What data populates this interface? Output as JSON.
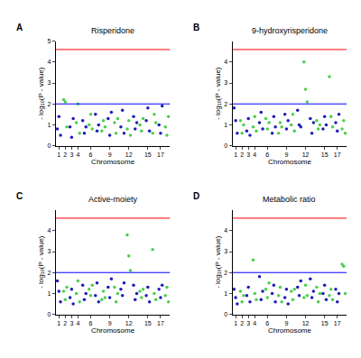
{
  "chart_data": [
    {
      "type": "scatter",
      "panel": "A",
      "title": "Risperidone",
      "x_label": "Chromosome",
      "y_label": "- log₁₀(P - value)",
      "marker": "circle",
      "xlim": [
        0,
        18
      ],
      "ylim": [
        0,
        5
      ],
      "xticks": [
        {
          "value": 0.5,
          "label": "1"
        },
        {
          "value": 1.5,
          "label": "2"
        },
        {
          "value": 2.5,
          "label": "3"
        },
        {
          "value": 3.5,
          "label": "4"
        },
        {
          "value": 5.5,
          "label": "6"
        },
        {
          "value": 8.5,
          "label": "9"
        },
        {
          "value": 11.5,
          "label": "12"
        },
        {
          "value": 14.5,
          "label": "15"
        },
        {
          "value": 16.5,
          "label": "17"
        }
      ],
      "yticks": [
        0,
        1,
        2,
        3,
        4,
        5
      ],
      "thresholds": [
        {
          "value": 4.6,
          "color": "#ff0000"
        },
        {
          "value": 2,
          "color": "#0000ff"
        }
      ],
      "series": [
        {
          "color": "#1c1cb8",
          "x": [
            0.25,
            0.5,
            0.75,
            2.25,
            2.5,
            2.75,
            4.25,
            4.5,
            4.75,
            6.25,
            6.5,
            6.75,
            8.25,
            8.5,
            8.75,
            10.25,
            10.5,
            10.75,
            12.25,
            12.5,
            12.75,
            14.25,
            14.5,
            14.75,
            16.25,
            16.5,
            16.75
          ],
          "values": [
            0.8,
            1.4,
            0.5,
            0.9,
            0.4,
            1.3,
            1.2,
            0.6,
            0.9,
            1.5,
            0.7,
            1.0,
            1.3,
            0.5,
            1.6,
            0.9,
            1.7,
            0.6,
            1.4,
            0.8,
            1.1,
            1.2,
            1.8,
            0.7,
            1.0,
            0.6,
            1.9
          ]
        },
        {
          "color": "#4ccf4c",
          "x": [
            1.25,
            1.5,
            1.75,
            3.25,
            3.5,
            3.75,
            5.25,
            5.5,
            5.75,
            7.25,
            7.5,
            7.75,
            9.25,
            9.5,
            9.75,
            11.25,
            11.5,
            11.75,
            13.25,
            13.5,
            13.75,
            15.25,
            15.5,
            15.75,
            17.25,
            17.5,
            17.75
          ],
          "values": [
            2.2,
            2.1,
            0.9,
            1.1,
            2.0,
            0.6,
            1.0,
            1.5,
            0.8,
            0.7,
            1.2,
            0.9,
            1.1,
            0.6,
            1.3,
            0.8,
            1.2,
            0.5,
            1.0,
            0.7,
            1.3,
            0.6,
            1.5,
            1.1,
            0.9,
            0.5,
            1.4
          ]
        }
      ]
    },
    {
      "type": "scatter",
      "panel": "B",
      "title": "9-hydroxyrisperidone",
      "x_label": "Chromosome",
      "y_label": "- log₁₀(P - value)",
      "marker": "circle",
      "xlim": [
        0,
        18
      ],
      "ylim": [
        0,
        5
      ],
      "xticks": [
        {
          "value": 0.5,
          "label": "1"
        },
        {
          "value": 1.5,
          "label": "2"
        },
        {
          "value": 2.5,
          "label": "3"
        },
        {
          "value": 3.5,
          "label": "4"
        },
        {
          "value": 5.5,
          "label": "6"
        },
        {
          "value": 8.5,
          "label": "9"
        },
        {
          "value": 11.5,
          "label": "12"
        },
        {
          "value": 14.5,
          "label": "15"
        },
        {
          "value": 16.5,
          "label": "17"
        }
      ],
      "yticks": [
        0,
        1,
        2,
        3,
        4
      ],
      "thresholds": [
        {
          "value": 4.6,
          "color": "#ff0000"
        },
        {
          "value": 2,
          "color": "#0000ff"
        }
      ],
      "series": [
        {
          "color": "#1c1cb8",
          "x": [
            0.25,
            0.5,
            0.75,
            2.25,
            2.5,
            2.75,
            4.25,
            4.5,
            4.75,
            6.25,
            6.5,
            6.75,
            8.25,
            8.5,
            8.75,
            10.25,
            10.5,
            10.75,
            12.25,
            12.5,
            12.75,
            14.25,
            14.5,
            14.75,
            16.25,
            16.5,
            16.75
          ],
          "values": [
            1.8,
            1.2,
            0.6,
            0.7,
            1.3,
            0.5,
            1.1,
            1.6,
            0.8,
            0.6,
            1.4,
            0.9,
            1.5,
            0.8,
            1.2,
            1.7,
            1.0,
            0.9,
            1.3,
            0.6,
            1.1,
            0.8,
            1.4,
            1.0,
            1.1,
            0.7,
            1.5
          ]
        },
        {
          "color": "#4ccf4c",
          "x": [
            1.25,
            1.5,
            1.75,
            3.25,
            3.5,
            3.75,
            5.25,
            5.5,
            5.75,
            7.25,
            7.5,
            7.75,
            9.25,
            9.5,
            9.75,
            11.25,
            11.5,
            11.75,
            13.25,
            13.5,
            13.75,
            15.25,
            15.5,
            15.75,
            17.25,
            17.5,
            17.75
          ],
          "values": [
            1.2,
            0.6,
            1.0,
            0.9,
            1.4,
            0.7,
            1.3,
            0.8,
            1.1,
            0.6,
            1.1,
            0.9,
            1.0,
            1.5,
            0.7,
            4.0,
            2.7,
            2.1,
            1.2,
            0.8,
            1.0,
            3.3,
            1.4,
            0.9,
            0.8,
            1.2,
            0.6
          ]
        }
      ]
    },
    {
      "type": "scatter",
      "panel": "C",
      "title": "Active-moiety",
      "x_label": "Chromosome",
      "y_label": "- log₁₀(P - value)",
      "marker": "circle",
      "xlim": [
        0,
        18
      ],
      "ylim": [
        0,
        5
      ],
      "xticks": [
        {
          "value": 0.5,
          "label": "1"
        },
        {
          "value": 1.5,
          "label": "2"
        },
        {
          "value": 2.5,
          "label": "3"
        },
        {
          "value": 3.5,
          "label": "4"
        },
        {
          "value": 5.5,
          "label": "6"
        },
        {
          "value": 8.5,
          "label": "9"
        },
        {
          "value": 11.5,
          "label": "12"
        },
        {
          "value": 14.5,
          "label": "15"
        },
        {
          "value": 16.5,
          "label": "17"
        }
      ],
      "yticks": [
        0,
        1,
        2,
        3,
        4
      ],
      "thresholds": [
        {
          "value": 4.6,
          "color": "#ff0000"
        },
        {
          "value": 2,
          "color": "#0000ff"
        }
      ],
      "series": [
        {
          "color": "#1c1cb8",
          "x": [
            0.25,
            0.5,
            0.75,
            2.25,
            2.5,
            2.75,
            4.25,
            4.5,
            4.75,
            6.25,
            6.5,
            6.75,
            8.25,
            8.5,
            8.75,
            10.25,
            10.5,
            10.75,
            12.25,
            12.5,
            12.75,
            14.25,
            14.5,
            14.75,
            16.25,
            16.5,
            16.75
          ],
          "values": [
            1.6,
            1.1,
            0.6,
            0.8,
            1.2,
            0.5,
            1.4,
            0.7,
            1.0,
            0.9,
            1.5,
            0.6,
            1.3,
            0.8,
            1.7,
            1.2,
            0.9,
            1.5,
            1.4,
            0.7,
            1.0,
            0.9,
            1.3,
            0.6,
            1.2,
            0.8,
            1.4
          ]
        },
        {
          "color": "#4ccf4c",
          "x": [
            1.25,
            1.5,
            1.75,
            3.25,
            3.5,
            3.75,
            5.25,
            5.5,
            5.75,
            7.25,
            7.5,
            7.75,
            9.25,
            9.5,
            9.75,
            11.25,
            11.5,
            11.75,
            13.25,
            13.5,
            13.75,
            15.25,
            15.5,
            15.75,
            17.25,
            17.5,
            17.75
          ],
          "values": [
            1.1,
            0.7,
            1.3,
            1.0,
            1.6,
            0.6,
            1.2,
            0.9,
            1.4,
            0.7,
            1.1,
            0.8,
            1.3,
            0.6,
            1.0,
            3.8,
            2.8,
            2.1,
            1.1,
            0.8,
            1.2,
            3.1,
            1.0,
            0.7,
            0.9,
            1.3,
            0.6
          ]
        }
      ]
    },
    {
      "type": "scatter",
      "panel": "D",
      "title": "Metabolic ratio",
      "x_label": "Chromosome",
      "y_label": "- log₁₀(P - value)",
      "marker": "circle",
      "xlim": [
        0,
        18
      ],
      "ylim": [
        0,
        5
      ],
      "xticks": [
        {
          "value": 0.5,
          "label": "1"
        },
        {
          "value": 1.5,
          "label": "2"
        },
        {
          "value": 2.5,
          "label": "3"
        },
        {
          "value": 3.5,
          "label": "4"
        },
        {
          "value": 5.5,
          "label": "6"
        },
        {
          "value": 8.5,
          "label": "9"
        },
        {
          "value": 11.5,
          "label": "12"
        },
        {
          "value": 14.5,
          "label": "15"
        },
        {
          "value": 16.5,
          "label": "17"
        }
      ],
      "yticks": [
        0,
        1,
        2,
        3,
        4
      ],
      "thresholds": [
        {
          "value": 4.6,
          "color": "#ff0000"
        },
        {
          "value": 2,
          "color": "#0000ff"
        }
      ],
      "series": [
        {
          "color": "#1c1cb8",
          "x": [
            0.25,
            0.5,
            0.75,
            2.25,
            2.5,
            2.75,
            4.25,
            4.5,
            4.75,
            6.25,
            6.5,
            6.75,
            8.25,
            8.5,
            8.75,
            10.25,
            10.5,
            10.75,
            12.25,
            12.5,
            12.75,
            14.25,
            14.5,
            14.75,
            16.25,
            16.5,
            16.75
          ],
          "values": [
            1.2,
            0.8,
            0.5,
            0.9,
            1.3,
            0.6,
            1.8,
            0.7,
            1.1,
            1.0,
            1.4,
            0.6,
            0.8,
            1.2,
            0.5,
            1.3,
            0.9,
            1.6,
            1.7,
            0.8,
            1.1,
            1.0,
            1.4,
            0.7,
            1.2,
            0.6,
            1.0
          ]
        },
        {
          "color": "#4ccf4c",
          "x": [
            1.25,
            1.5,
            1.75,
            3.25,
            3.5,
            3.75,
            5.25,
            5.5,
            5.75,
            7.25,
            7.5,
            7.75,
            9.25,
            9.5,
            9.75,
            11.25,
            11.5,
            11.75,
            13.25,
            13.5,
            13.75,
            15.25,
            15.5,
            15.75,
            17.25,
            17.5,
            17.75
          ],
          "values": [
            1.1,
            0.6,
            0.9,
            2.6,
            1.0,
            0.7,
            1.2,
            0.8,
            1.5,
            0.9,
            1.3,
            0.6,
            1.1,
            0.7,
            1.2,
            0.8,
            1.4,
            0.9,
            1.3,
            0.6,
            1.0,
            0.9,
            1.2,
            0.7,
            2.4,
            2.3,
            1.0
          ]
        }
      ]
    }
  ]
}
